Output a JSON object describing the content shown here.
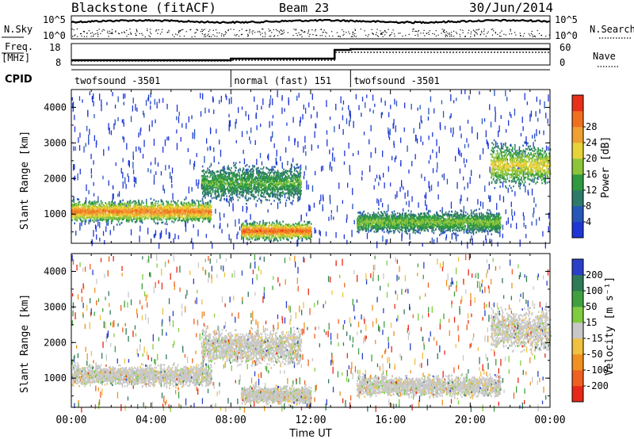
{
  "header": {
    "station": "Blackstone (fitACF)",
    "beam": "Beam 23",
    "date": "30/Jun/2014"
  },
  "noise_panel": {
    "left_label": "N.Sky",
    "right_label": "N.Search",
    "left_ticks": [
      "10^5",
      "10^0"
    ],
    "right_ticks": [
      "10^5",
      "10^0"
    ]
  },
  "freq_panel": {
    "left_label_1": "Freq.",
    "left_label_2": "[MHz]",
    "left_ticks": [
      "18",
      "8"
    ],
    "right_label": "Nave",
    "right_ticks": [
      "60",
      "0"
    ]
  },
  "cpid_panel": {
    "label": "CPID",
    "segments": [
      {
        "label": "twofsound -3501",
        "start_hr": 0,
        "end_hr": 8
      },
      {
        "label": "normal (fast) 151",
        "start_hr": 8,
        "end_hr": 14
      },
      {
        "label": "twofsound -3501",
        "start_hr": 14,
        "end_hr": 24
      }
    ]
  },
  "power_panel": {
    "ylabel": "Slant Range [km]",
    "yticks": [
      "1000",
      "2000",
      "3000",
      "4000"
    ],
    "colorbar_label": "Power [dB]",
    "colorbar_ticks": [
      "4",
      "8",
      "12",
      "16",
      "20",
      "24",
      "28"
    ],
    "colors": [
      "#1f36d6",
      "#2556b8",
      "#2d7a6a",
      "#2f9a40",
      "#8cc43a",
      "#e8d23a",
      "#f0a030",
      "#f07020",
      "#e83018"
    ]
  },
  "velocity_panel": {
    "ylabel": "Slant Range [km]",
    "yticks": [
      "1000",
      "2000",
      "3000",
      "4000"
    ],
    "colorbar_label": "Velocity [m s⁻¹]",
    "colorbar_ticks": [
      "200",
      "100",
      "50",
      "15",
      "-15",
      "-50",
      "-100",
      "-200"
    ],
    "colors": [
      "#2a40c8",
      "#2f7a58",
      "#40a040",
      "#80cc40",
      "#c8c8c8",
      "#f0c040",
      "#f09020",
      "#f06020",
      "#e82818"
    ]
  },
  "x_axis": {
    "label": "Time UT",
    "ticks": [
      "00:00",
      "04:00",
      "08:00",
      "12:00",
      "16:00",
      "20:00",
      "00:00"
    ]
  },
  "chart_data": [
    {
      "type": "heatmap",
      "title": "Power",
      "xlabel": "Time UT",
      "ylabel": "Slant Range [km]",
      "xlim_hr": [
        0,
        24
      ],
      "ylim": [
        180,
        4500
      ],
      "colorbar": {
        "label": "Power [dB]",
        "ticks": [
          4,
          8,
          12,
          16,
          20,
          24,
          28
        ]
      },
      "features": [
        {
          "t_start_hr": 0.0,
          "t_end_hr": 7.0,
          "range_low_km": 800,
          "range_high_km": 1400,
          "power_db": 22
        },
        {
          "t_start_hr": 6.5,
          "t_end_hr": 11.5,
          "range_low_km": 1400,
          "range_high_km": 2400,
          "power_db": 10
        },
        {
          "t_start_hr": 8.5,
          "t_end_hr": 12.0,
          "range_low_km": 300,
          "range_high_km": 800,
          "power_db": 24
        },
        {
          "t_start_hr": 14.3,
          "t_end_hr": 21.5,
          "range_low_km": 500,
          "range_high_km": 1100,
          "power_db": 12
        },
        {
          "t_start_hr": 21.0,
          "t_end_hr": 24.0,
          "range_low_km": 1800,
          "range_high_km": 3000,
          "power_db": 16
        }
      ]
    },
    {
      "type": "heatmap",
      "title": "Velocity",
      "xlabel": "Time UT",
      "ylabel": "Slant Range [km]",
      "xlim_hr": [
        0,
        24
      ],
      "ylim": [
        180,
        4500
      ],
      "colorbar": {
        "label": "Velocity [m s⁻¹]",
        "ticks": [
          200,
          100,
          50,
          15,
          -15,
          -50,
          -100,
          -200
        ]
      },
      "features": [
        {
          "t_start_hr": 0.0,
          "t_end_hr": 7.0,
          "range_low_km": 800,
          "range_high_km": 1400,
          "velocity_ms": 0
        },
        {
          "t_start_hr": 6.5,
          "t_end_hr": 11.5,
          "range_low_km": 1400,
          "range_high_km": 2400,
          "velocity_ms": 0
        },
        {
          "t_start_hr": 8.5,
          "t_end_hr": 12.0,
          "range_low_km": 300,
          "range_high_km": 800,
          "velocity_ms": 0
        },
        {
          "t_start_hr": 14.3,
          "t_end_hr": 21.5,
          "range_low_km": 500,
          "range_high_km": 1100,
          "velocity_ms": 0
        },
        {
          "t_start_hr": 21.0,
          "t_end_hr": 24.0,
          "range_low_km": 1800,
          "range_high_km": 3000,
          "velocity_ms": 0
        }
      ]
    }
  ]
}
